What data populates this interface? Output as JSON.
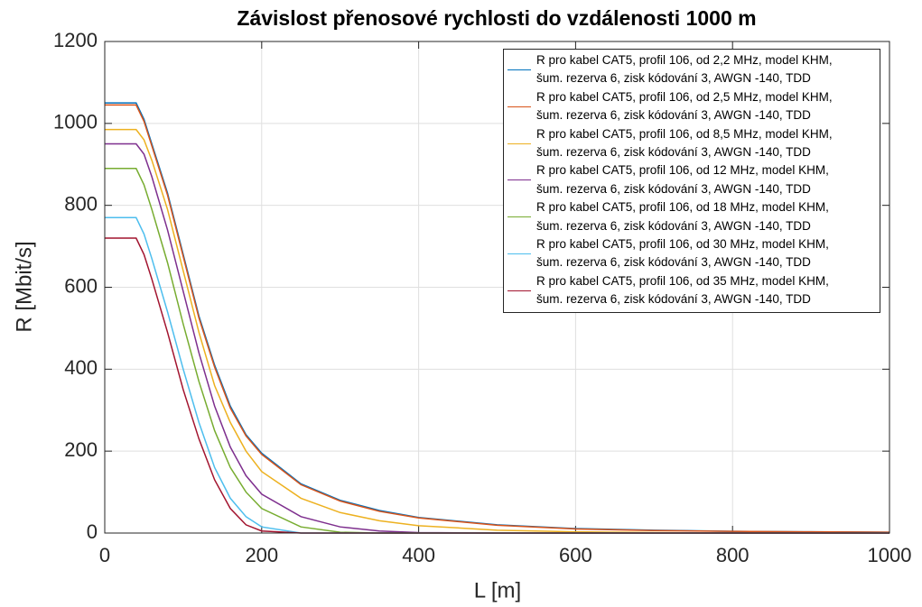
{
  "chart_data": {
    "type": "line",
    "title": "Závislost přenosové rychlosti do vzdálenosti 1000 m",
    "xlabel": "L [m]",
    "ylabel": "R [Mbit/s]",
    "x": [
      0,
      40,
      50,
      60,
      80,
      100,
      120,
      140,
      160,
      180,
      200,
      250,
      300,
      350,
      400,
      500,
      600,
      700,
      800,
      900,
      1000
    ],
    "series": [
      {
        "name": "R pro kabel CAT5, profil 106, od 2,2 MHz, model KHM,\nšum. rezerva 6, zisk kódování 3, AWGN -140, TDD",
        "color": "#0072BD",
        "values": [
          1050,
          1050,
          1010,
          950,
          830,
          680,
          530,
          410,
          310,
          240,
          195,
          120,
          80,
          55,
          38,
          20,
          11,
          7,
          4,
          3,
          2
        ]
      },
      {
        "name": "R pro kabel CAT5, profil 106, od 2,5 MHz, model KHM,\nšum. rezerva 6, zisk kódování 3, AWGN -140, TDD",
        "color": "#D95319",
        "values": [
          1045,
          1045,
          1005,
          945,
          825,
          675,
          525,
          405,
          305,
          237,
          192,
          118,
          78,
          53,
          37,
          19,
          10,
          6,
          4,
          3,
          2
        ]
      },
      {
        "name": "R pro kabel CAT5, profil 106, od 8,5 MHz, model KHM,\nšum. rezerva 6, zisk kódování 3, AWGN -140, TDD",
        "color": "#EDB120",
        "values": [
          985,
          985,
          960,
          910,
          790,
          640,
          490,
          360,
          270,
          200,
          150,
          85,
          50,
          30,
          18,
          7,
          3,
          1,
          0,
          0,
          0
        ]
      },
      {
        "name": "R pro kabel CAT5, profil 106, od 12 MHz, model KHM,\nšum. rezerva 6, zisk kódování 3, AWGN -140, TDD",
        "color": "#7E2F8E",
        "values": [
          950,
          950,
          925,
          870,
          740,
          590,
          440,
          310,
          210,
          140,
          95,
          40,
          15,
          5,
          1,
          0,
          0,
          0,
          0,
          0,
          0
        ]
      },
      {
        "name": "R pro kabel CAT5, profil 106, od 18 MHz, model KHM,\nšum. rezerva 6, zisk kódování 3, AWGN -140, TDD",
        "color": "#77AC30",
        "values": [
          890,
          890,
          850,
          790,
          660,
          510,
          370,
          250,
          160,
          100,
          60,
          15,
          2,
          0,
          0,
          0,
          0,
          0,
          0,
          0,
          0
        ]
      },
      {
        "name": "R pro kabel CAT5, profil 106, od 30 MHz, model KHM,\nšum. rezerva 6, zisk kódování 3, AWGN -140, TDD",
        "color": "#4DBEEE",
        "values": [
          770,
          770,
          730,
          670,
          540,
          400,
          270,
          160,
          85,
          40,
          15,
          0,
          0,
          0,
          0,
          0,
          0,
          0,
          0,
          0,
          0
        ]
      },
      {
        "name": "R pro kabel CAT5, profil 106, od 35 MHz, model KHM,\nšum. rezerva 6, zisk kódování 3, AWGN -140, TDD",
        "color": "#A2142F",
        "values": [
          720,
          720,
          680,
          620,
          490,
          350,
          230,
          130,
          60,
          20,
          5,
          0,
          0,
          0,
          0,
          0,
          0,
          0,
          0,
          0,
          0
        ]
      }
    ],
    "xlim": [
      0,
      1000
    ],
    "xticks": [
      0,
      200,
      400,
      600,
      800,
      1000
    ],
    "ylim": [
      0,
      1200
    ],
    "yticks": [
      0,
      200,
      400,
      600,
      800,
      1000,
      1200
    ],
    "grid": true,
    "legend_position": "northeast"
  }
}
